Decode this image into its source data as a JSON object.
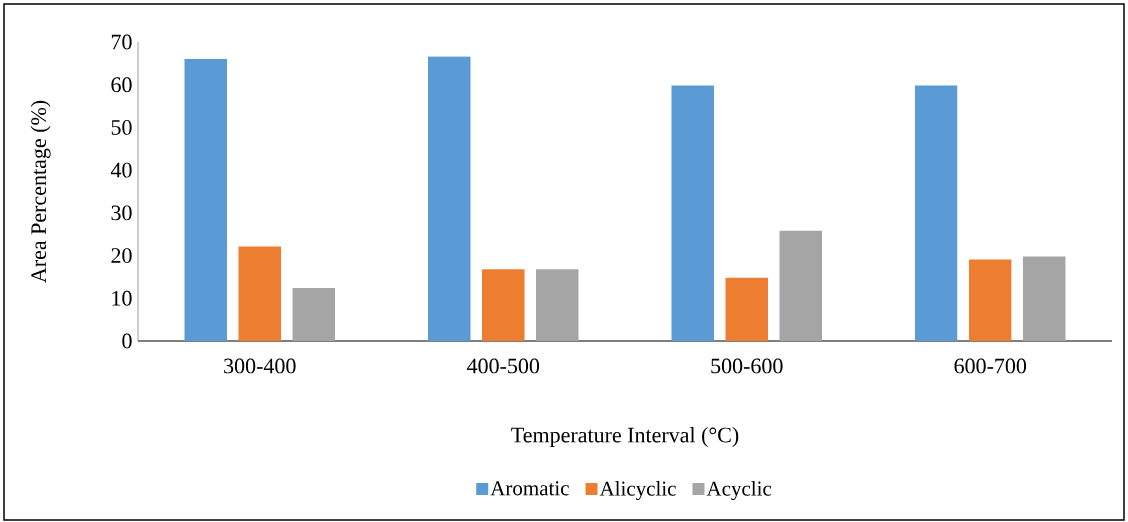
{
  "chart_data": {
    "type": "bar",
    "xlabel": "Temperature Interval (°C)",
    "ylabel": "Area Percentage (%)",
    "categories": [
      "300-400",
      "400-500",
      "500-600",
      "600-700"
    ],
    "series": [
      {
        "name": "Aromatic",
        "color": "#5b9bd5",
        "values": [
          66.0,
          66.6,
          59.8,
          59.8
        ]
      },
      {
        "name": "Alicyclic",
        "color": "#ed7d31",
        "values": [
          22.1,
          16.8,
          14.8,
          19.1
        ]
      },
      {
        "name": "Acyclic",
        "color": "#a5a5a5",
        "values": [
          12.4,
          16.8,
          25.8,
          19.8
        ]
      }
    ],
    "ylim": [
      0,
      70
    ],
    "yticks": [
      0,
      10,
      20,
      30,
      40,
      50,
      60,
      70
    ],
    "grid": false,
    "legend": "bottom"
  }
}
